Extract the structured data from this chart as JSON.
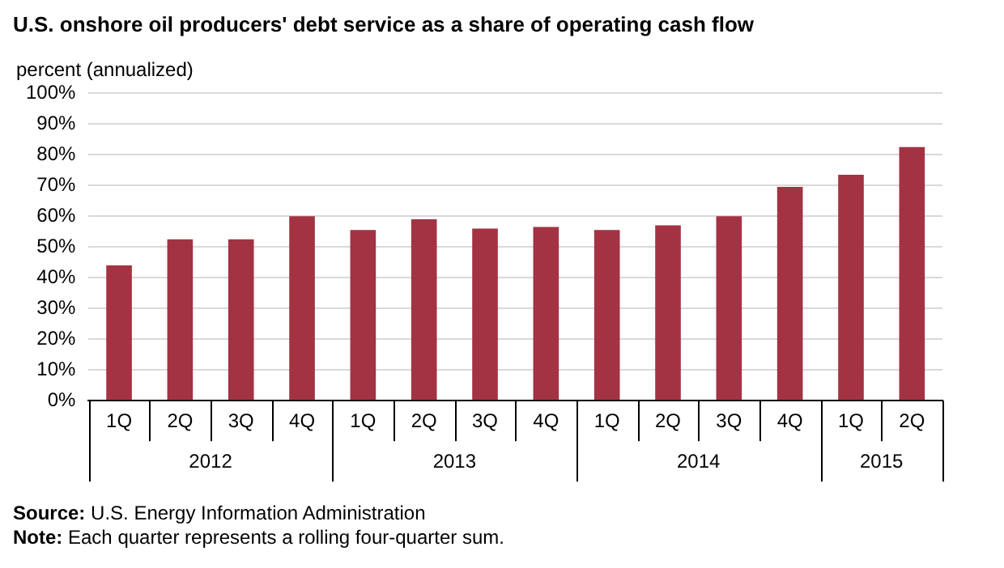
{
  "chart_data": {
    "type": "bar",
    "title": "U.S. onshore oil producers' debt service as a share of operating cash flow",
    "ylabel": "percent (annualized)",
    "categories": [
      "1Q",
      "2Q",
      "3Q",
      "4Q",
      "1Q",
      "2Q",
      "3Q",
      "4Q",
      "1Q",
      "2Q",
      "3Q",
      "4Q",
      "1Q",
      "2Q"
    ],
    "values": [
      44,
      52.5,
      52.5,
      60,
      55.5,
      59,
      56,
      56.5,
      55.5,
      57,
      60,
      69.5,
      73.5,
      82.5
    ],
    "color": "#a33343",
    "ylim": [
      0,
      100
    ],
    "yticks": [
      {
        "value": 0,
        "label": "0%"
      },
      {
        "value": 10,
        "label": "10%"
      },
      {
        "value": 20,
        "label": "20%"
      },
      {
        "value": 30,
        "label": "30%"
      },
      {
        "value": 40,
        "label": "40%"
      },
      {
        "value": 50,
        "label": "50%"
      },
      {
        "value": 60,
        "label": "60%"
      },
      {
        "value": 70,
        "label": "70%"
      },
      {
        "value": 80,
        "label": "80%"
      },
      {
        "value": 90,
        "label": "90%"
      },
      {
        "value": 100,
        "label": "100%"
      }
    ],
    "grid": "y",
    "legend": false,
    "annotations": [
      "2012",
      "2013",
      "2014",
      "2015",
      "Source: U.S. Energy Information Administration",
      "Note: Each quarter represents a rolling four-quarter sum."
    ]
  }
}
